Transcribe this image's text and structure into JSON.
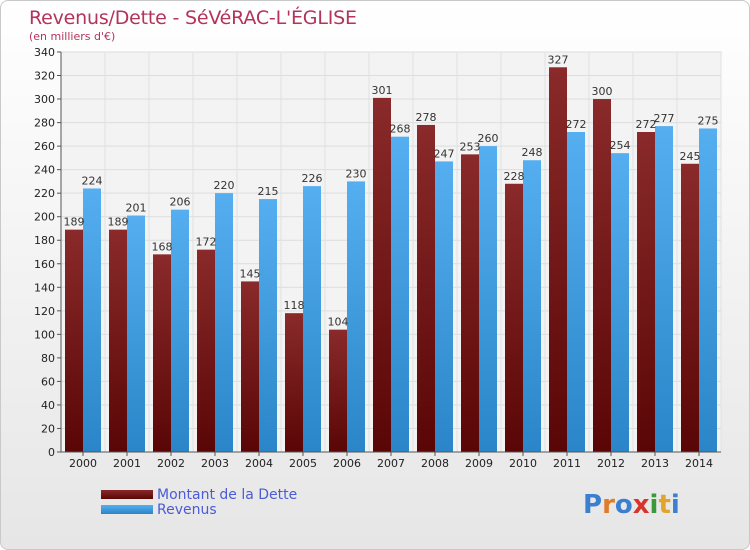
{
  "header": {
    "title": "Revenus/Dette - SéVéRAC-L'ÉGLISE",
    "subtitle": "(en milliers d'€)"
  },
  "legend": {
    "items": [
      {
        "label": "Montant de la Dette",
        "color": "#7a1c1c"
      },
      {
        "label": "Revenus",
        "color": "#3d9ee0"
      }
    ]
  },
  "logo": {
    "text": "Proxiti",
    "letters": [
      "P",
      "r",
      "o",
      "x",
      "i",
      "t",
      "i"
    ],
    "colors": [
      "#3a7fd0",
      "#e07b2a",
      "#3a7fd0",
      "#d9342b",
      "#3a9a3a",
      "#e0a52a",
      "#3a7fd0"
    ]
  },
  "chart_data": {
    "type": "bar",
    "title": "Revenus/Dette - SéVéRAC-L'ÉGLISE",
    "subtitle": "(en milliers d'€)",
    "categories": [
      "2000",
      "2001",
      "2002",
      "2003",
      "2004",
      "2005",
      "2006",
      "2007",
      "2008",
      "2009",
      "2010",
      "2011",
      "2012",
      "2013",
      "2014"
    ],
    "series": [
      {
        "name": "Montant de la Dette",
        "color": "#7a1c1c",
        "values": [
          189,
          189,
          168,
          172,
          145,
          118,
          104,
          301,
          278,
          253,
          228,
          327,
          300,
          272,
          245
        ]
      },
      {
        "name": "Revenus",
        "color": "#3d9ee0",
        "values": [
          224,
          201,
          206,
          220,
          215,
          226,
          230,
          268,
          247,
          260,
          248,
          272,
          254,
          277,
          275
        ]
      }
    ],
    "yticks": [
      0,
      20,
      40,
      60,
      80,
      100,
      120,
      140,
      160,
      180,
      200,
      220,
      240,
      260,
      280,
      300,
      320,
      340
    ],
    "ylim": [
      0,
      340
    ],
    "grid": true,
    "legend_position": "bottom-left"
  }
}
